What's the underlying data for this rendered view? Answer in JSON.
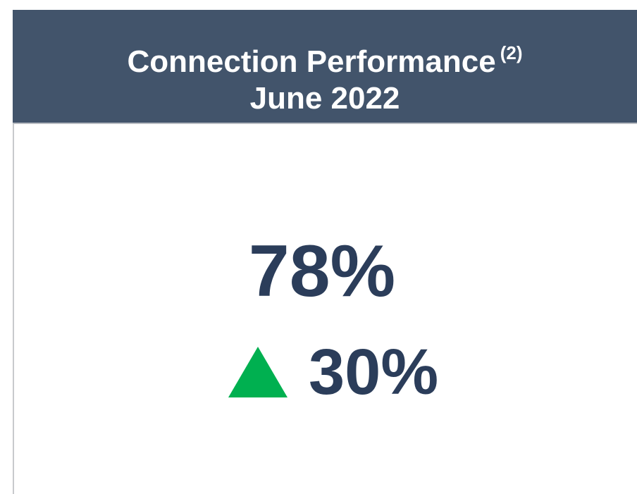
{
  "card": {
    "title": "Connection Performance",
    "footnote": "(2)",
    "subtitle": "June 2022",
    "value": "78%",
    "change": "30%"
  }
}
